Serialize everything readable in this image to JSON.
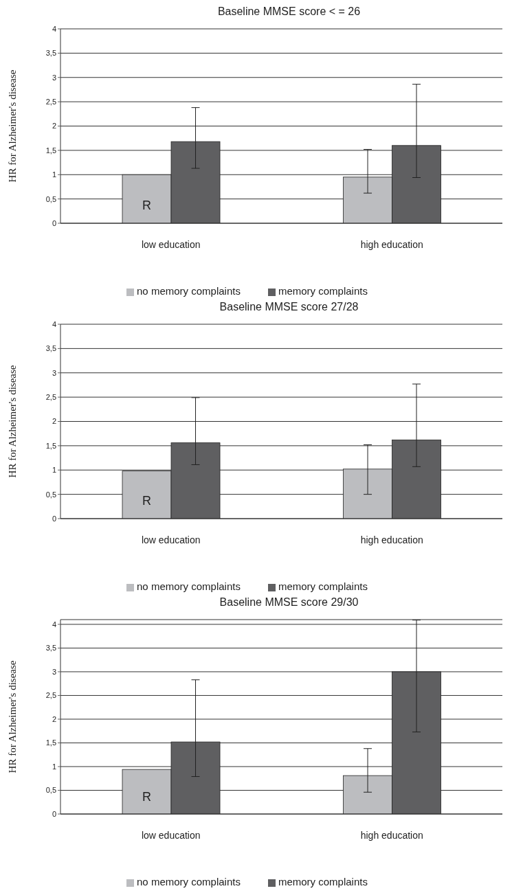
{
  "chart_data": [
    {
      "type": "bar",
      "title": "Baseline MMSE score  < = 26",
      "ylabel": "HR for Alzheimer's disease",
      "categories": [
        "low education",
        "high education"
      ],
      "series": [
        {
          "name": "no memory complaints",
          "color": "#bcbdc0",
          "values": [
            1.0,
            0.95
          ],
          "errors": [
            null,
            [
              0.62,
              1.52
            ]
          ]
        },
        {
          "name": "memory complaints",
          "color": "#5f5f61",
          "values": [
            1.68,
            1.6
          ],
          "errors": [
            [
              1.13,
              2.38
            ],
            [
              0.94,
              2.86
            ]
          ]
        }
      ],
      "ylim": [
        0,
        4
      ],
      "yticks": [
        0,
        {
          "value": 0.5,
          "label": "0,5"
        },
        1,
        {
          "value": 1.5,
          "label": "1,5"
        },
        2,
        {
          "value": 2.5,
          "label": "2,5"
        },
        3,
        {
          "value": 3.5,
          "label": "3,5"
        },
        4
      ],
      "grid": "y",
      "legend": "bottom",
      "annotations": [
        {
          "text": "R",
          "x": "low education",
          "y": 0.35
        }
      ]
    },
    {
      "type": "bar",
      "title": "Baseline MMSE score  27/28",
      "ylabel": "HR for Alzheimer's disease",
      "categories": [
        "low education",
        "high education"
      ],
      "series": [
        {
          "name": "no memory complaints",
          "color": "#bcbdc0",
          "values": [
            0.98,
            1.02
          ],
          "errors": [
            null,
            [
              0.5,
              1.52
            ]
          ]
        },
        {
          "name": "memory complaints",
          "color": "#5f5f61",
          "values": [
            1.56,
            1.62
          ],
          "errors": [
            [
              1.11,
              2.49
            ],
            [
              1.07,
              2.77
            ]
          ]
        }
      ],
      "ylim": [
        0,
        4
      ],
      "yticks": [
        0,
        {
          "value": 0.5,
          "label": "0,5"
        },
        1,
        {
          "value": 1.5,
          "label": "1,5"
        },
        2,
        {
          "value": 2.5,
          "label": "2,5"
        },
        3,
        {
          "value": 3.5,
          "label": "3,5"
        },
        4
      ],
      "grid": "y",
      "legend": "bottom",
      "annotations": [
        {
          "text": "R",
          "x": "low education",
          "y": 0.35
        }
      ]
    },
    {
      "type": "bar",
      "title": "Baseline MMSE score  29/30",
      "ylabel": "HR for Alzheimer's disease",
      "categories": [
        "low education",
        "high education"
      ],
      "series": [
        {
          "name": "no memory complaints",
          "color": "#bcbdc0",
          "values": [
            0.94,
            0.81
          ],
          "errors": [
            null,
            [
              0.46,
              1.38
            ]
          ]
        },
        {
          "name": "memory complaints",
          "color": "#5f5f61",
          "values": [
            1.52,
            3.0
          ],
          "errors": [
            [
              0.79,
              2.83
            ],
            [
              1.73,
              4.09
            ]
          ]
        }
      ],
      "ylim": [
        0,
        4.1
      ],
      "yticks": [
        0,
        {
          "value": 0.5,
          "label": "0,5"
        },
        1,
        {
          "value": 1.5,
          "label": "1,5"
        },
        2,
        {
          "value": 2.5,
          "label": "2,5"
        },
        3,
        {
          "value": 3.5,
          "label": "3,5"
        },
        4
      ],
      "grid": "y",
      "legend": "bottom",
      "annotations": [
        {
          "text": "R",
          "x": "low education",
          "y": 0.35
        }
      ]
    }
  ]
}
